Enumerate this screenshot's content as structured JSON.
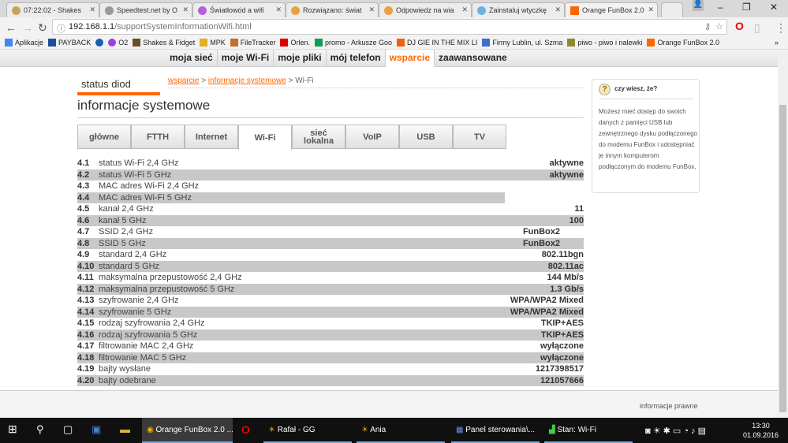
{
  "browser": {
    "tabs": [
      {
        "label": "07:22:02 - Shakes"
      },
      {
        "label": "Speedtest.net by O"
      },
      {
        "label": "Światłowód a wifi"
      },
      {
        "label": "Rozwiązano: świat"
      },
      {
        "label": "Odpowiedz na wia"
      },
      {
        "label": "Zainstaluj wtyczkę"
      },
      {
        "label": "Orange FunBox 2.0"
      }
    ],
    "url_host": "192.168.1.1",
    "url_path": "/supportSystemInformationWifi.html",
    "bookmarks": [
      "Aplikacje",
      "PAYBACK",
      "",
      "O2",
      "Shakes & Fidget",
      "MPK",
      "FileTracker",
      "Orlen.",
      "promo - Arkusze Goo",
      "DJ GIE IN THE MIX LI",
      "Firmy Lublin, ul. Szma",
      "piwo - piwo i nalewki",
      "Orange FunBox 2.0"
    ],
    "more": "»"
  },
  "topnav": [
    "moja sieć",
    "moje Wi-Fi",
    "moje pliki",
    "mój telefon",
    "wsparcie",
    "zaawansowane"
  ],
  "status_diod": "status diod",
  "breadcrumb": {
    "a": "wsparcie",
    "sep": " > ",
    "b": "informacje systemowe",
    "c": "Wi-Fi"
  },
  "title": "informacje systemowe",
  "tabs": [
    "główne",
    "FTTH",
    "Internet",
    "Wi-Fi",
    "sieć lokalna",
    "VoIP",
    "USB",
    "TV"
  ],
  "active_tab": "Wi-Fi",
  "rows": [
    {
      "n": "4.1",
      "l": "status Wi-Fi 2,4 GHz",
      "v": "aktywne"
    },
    {
      "n": "4.2",
      "l": "status Wi-Fi 5 GHz",
      "v": "aktywne"
    },
    {
      "n": "4.3",
      "l": "MAC adres Wi-Fi 2,4 GHz",
      "v": ""
    },
    {
      "n": "4.4",
      "l": "MAC adres Wi-Fi 5 GHz",
      "v": ""
    },
    {
      "n": "4.5",
      "l": "kanał 2,4 GHz",
      "v": "11"
    },
    {
      "n": "4.6",
      "l": "kanał 5 GHz",
      "v": "100"
    },
    {
      "n": "4.7",
      "l": "SSID 2,4 GHz",
      "v": "FunBox2"
    },
    {
      "n": "4.8",
      "l": "SSID 5 GHz",
      "v": "FunBox2"
    },
    {
      "n": "4.9",
      "l": "standard 2,4 GHz",
      "v": "802.11bgn"
    },
    {
      "n": "4.10",
      "l": "standard 5 GHz",
      "v": "802.11ac"
    },
    {
      "n": "4.11",
      "l": "maksymalna przepustowość 2,4 GHz",
      "v": "144 Mb/s"
    },
    {
      "n": "4.12",
      "l": "maksymalna przepustowość 5 GHz",
      "v": "1.3 Gb/s"
    },
    {
      "n": "4.13",
      "l": "szyfrowanie 2,4 GHz",
      "v": "WPA/WPA2 Mixed"
    },
    {
      "n": "4.14",
      "l": "szyfrowanie 5 GHz",
      "v": "WPA/WPA2 Mixed"
    },
    {
      "n": "4.15",
      "l": "rodzaj szyfrowania 2,4 GHz",
      "v": "TKIP+AES"
    },
    {
      "n": "4.16",
      "l": "rodzaj szyfrowania 5 GHz",
      "v": "TKIP+AES"
    },
    {
      "n": "4.17",
      "l": "filtrowanie MAC 2,4 GHz",
      "v": "wyłączone"
    },
    {
      "n": "4.18",
      "l": "filtrowanie MAC 5 GHz",
      "v": "wyłączone"
    },
    {
      "n": "4.19",
      "l": "bajty wysłane",
      "v": "1217398517"
    },
    {
      "n": "4.20",
      "l": "bajty odebrane",
      "v": "121057666"
    }
  ],
  "sidebar": {
    "icon": "?",
    "title": "czy wiesz, że?",
    "body": "Możesz mieć dostęp do swoich danych z pamięci USB lub zewnętrznego dysku podłączonego do modemu FunBox i udostępniać je innym komputerom podłączonym do modemu FunBox."
  },
  "footer": "informacje prawne",
  "taskbar": {
    "items": [
      "Orange FunBox 2.0 ...",
      "",
      "Rafał - GG",
      "Ania",
      "Panel sterowania\\...",
      "Stan: Wi-Fi"
    ],
    "time": "13:30",
    "date": "01.09.2016"
  },
  "colors": {
    "accent": "#ff6600",
    "row_alt": "#c8c8c8"
  }
}
